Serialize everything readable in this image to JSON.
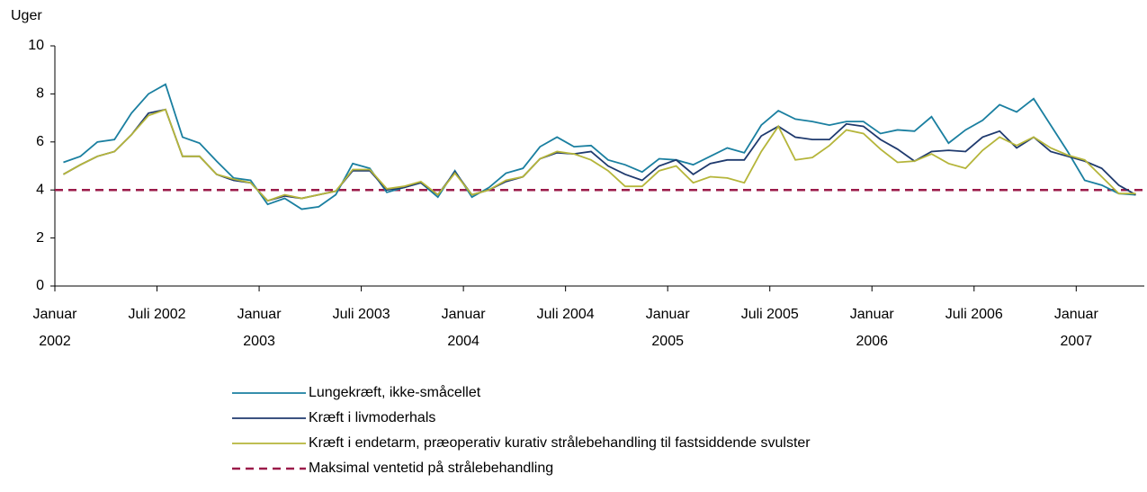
{
  "chart_data": {
    "type": "line",
    "y_label": "Uger",
    "x": [
      0.5,
      1.5,
      2.5,
      3.5,
      4.5,
      5.5,
      6.5,
      7.5,
      8.5,
      9.5,
      10.5,
      11.5,
      12.5,
      13.5,
      14.5,
      15.5,
      16.5,
      17.5,
      18.5,
      19.5,
      20.5,
      21.5,
      22.5,
      23.5,
      24.5,
      25.5,
      26.5,
      27.5,
      28.5,
      29.5,
      30.5,
      31.5,
      32.5,
      33.5,
      34.5,
      35.5,
      36.5,
      37.5,
      38.5,
      39.5,
      40.5,
      41.5,
      42.5,
      43.5,
      44.5,
      45.5,
      46.5,
      47.5,
      48.5,
      49.5,
      50.5,
      51.5,
      52.5,
      53.5,
      54.5,
      55.5,
      56.5,
      57.5,
      58.5,
      59.5,
      60.5,
      61.5,
      62.5,
      63.5
    ],
    "series": [
      {
        "name": "Lungekræft, ikke-småcellet",
        "color": "#1a7fa0",
        "values": [
          5.15,
          5.4,
          6.0,
          6.1,
          7.2,
          8.0,
          8.4,
          6.2,
          5.95,
          5.2,
          4.5,
          4.4,
          3.4,
          3.65,
          3.2,
          3.3,
          3.8,
          5.1,
          4.9,
          3.9,
          4.1,
          4.3,
          3.7,
          4.8,
          3.7,
          4.1,
          4.7,
          4.9,
          5.8,
          6.2,
          5.8,
          5.85,
          5.25,
          5.05,
          4.75,
          5.3,
          5.25,
          5.05,
          5.4,
          5.75,
          5.55,
          6.7,
          7.3,
          6.95,
          6.85,
          6.7,
          6.85,
          6.85,
          6.35,
          6.5,
          6.45,
          7.05,
          5.95,
          6.5,
          6.9,
          7.55,
          7.25,
          7.8,
          6.7,
          5.6,
          4.4,
          4.2,
          3.85,
          3.8
        ]
      },
      {
        "name": "Kræft i livmoderhals",
        "color": "#1f3a6e",
        "values": [
          4.65,
          5.05,
          5.4,
          5.6,
          6.3,
          7.2,
          7.35,
          5.4,
          5.4,
          4.65,
          4.4,
          4.3,
          3.55,
          3.75,
          3.65,
          3.8,
          3.95,
          4.8,
          4.8,
          4.0,
          4.1,
          4.3,
          3.8,
          4.75,
          3.8,
          4.0,
          4.35,
          4.55,
          5.3,
          5.55,
          5.5,
          5.6,
          5.0,
          4.65,
          4.4,
          5.0,
          5.25,
          4.65,
          5.1,
          5.25,
          5.25,
          6.25,
          6.65,
          6.2,
          6.1,
          6.1,
          6.75,
          6.65,
          6.1,
          5.7,
          5.2,
          5.6,
          5.65,
          5.6,
          6.2,
          6.45,
          5.75,
          6.2,
          5.6,
          5.4,
          5.2,
          4.9,
          4.2,
          3.8
        ]
      },
      {
        "name": "Kræft i endetarm, præoperativ kurativ strålebehandling til fastsiddende svulster",
        "color": "#b5b53a",
        "values": [
          4.65,
          5.05,
          5.4,
          5.6,
          6.3,
          7.1,
          7.35,
          5.4,
          5.4,
          4.65,
          4.45,
          4.3,
          3.55,
          3.8,
          3.65,
          3.8,
          3.95,
          4.85,
          4.85,
          4.05,
          4.15,
          4.35,
          3.8,
          4.7,
          3.8,
          4.0,
          4.4,
          4.55,
          5.3,
          5.6,
          5.5,
          5.25,
          4.8,
          4.15,
          4.15,
          4.8,
          5.0,
          4.3,
          4.55,
          4.5,
          4.3,
          5.6,
          6.65,
          5.25,
          5.35,
          5.85,
          6.5,
          6.35,
          5.7,
          5.15,
          5.2,
          5.5,
          5.1,
          4.9,
          5.65,
          6.2,
          5.85,
          6.2,
          5.75,
          5.45,
          5.25,
          4.55,
          3.85,
          3.85
        ]
      }
    ],
    "reference_line": {
      "name": "Maksimal ventetid på strålebehandling",
      "value": 4,
      "color": "#9b1b4a",
      "dashed": true
    },
    "xlim": [
      0,
      64
    ],
    "xticks": [
      {
        "value": 0,
        "label": "Januar\n2002"
      },
      {
        "value": 6,
        "label": "Juli 2002"
      },
      {
        "value": 12,
        "label": "Januar\n2003"
      },
      {
        "value": 18,
        "label": "Juli 2003"
      },
      {
        "value": 24,
        "label": "Januar\n2004"
      },
      {
        "value": 30,
        "label": "Juli 2004"
      },
      {
        "value": 36,
        "label": "Januar\n2005"
      },
      {
        "value": 42,
        "label": "Juli 2005"
      },
      {
        "value": 48,
        "label": "Januar\n2006"
      },
      {
        "value": 54,
        "label": "Juli 2006"
      },
      {
        "value": 60,
        "label": "Januar\n2007"
      }
    ],
    "ylim": [
      0,
      10
    ],
    "yticks": [
      0,
      2,
      4,
      6,
      8,
      10
    ],
    "grid": false
  }
}
